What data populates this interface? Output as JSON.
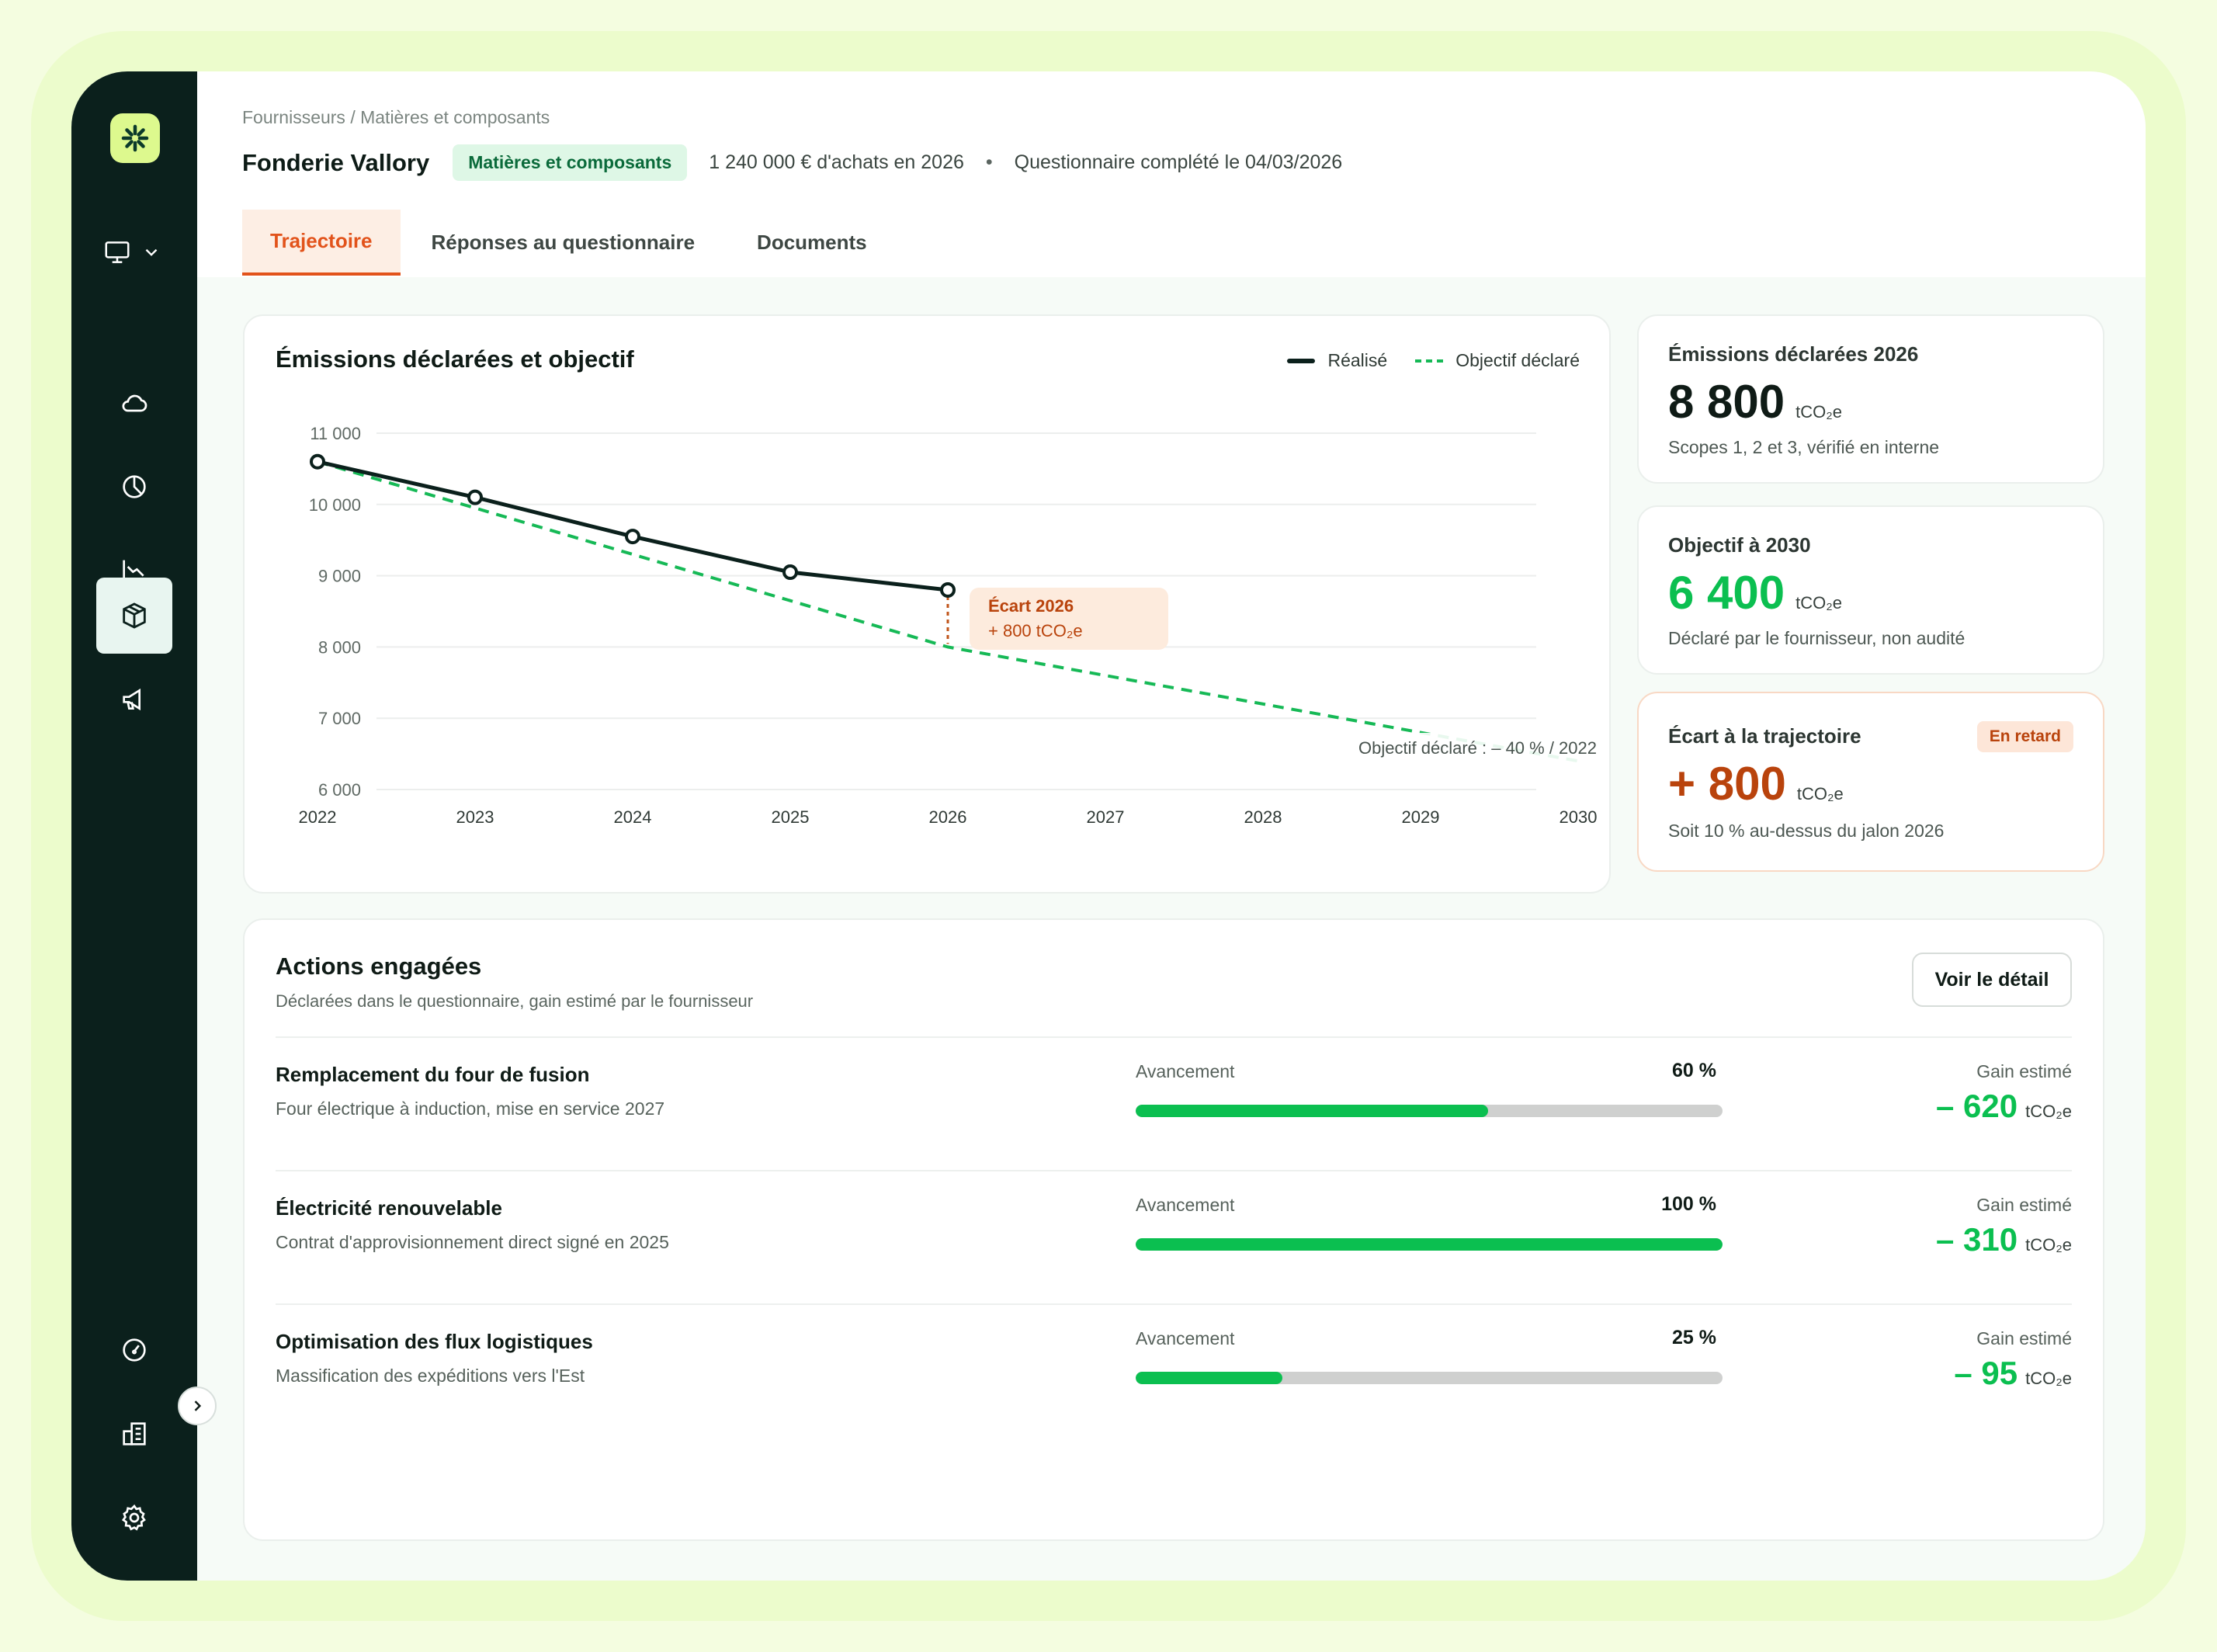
{
  "app": {
    "nav_icons": [
      "monitor-icon",
      "cloud-icon",
      "pie-chart-icon",
      "trend-chart-icon",
      "box-icon",
      "megaphone-icon",
      "gauge-icon",
      "building-icon",
      "gear-icon"
    ],
    "active_nav": "box-icon"
  },
  "header": {
    "breadcrumb": "Fournisseurs / Matières et composants",
    "supplier": "Fonderie Vallory",
    "category_tag": "Matières et composants",
    "purchases": "1 240 000 € d'achats en 2026",
    "separator": "•",
    "questionnaire": "Questionnaire complété le 04/03/2026"
  },
  "tabs": [
    {
      "label": "Trajectoire",
      "active": true
    },
    {
      "label": "Réponses au questionnaire",
      "active": false
    },
    {
      "label": "Documents",
      "active": false
    }
  ],
  "chart": {
    "title": "Émissions déclarées et objectif",
    "legend_realise": "Réalisé",
    "legend_objectif": "Objectif déclaré",
    "gap_title": "Écart 2026",
    "gap_value": "+ 800 tCO₂e",
    "target_note": "Objectif déclaré : – 40 % / 2022"
  },
  "chart_data": {
    "type": "line",
    "title": "Émissions déclarées et objectif",
    "x": [
      2022,
      2023,
      2024,
      2025,
      2026,
      2027,
      2028,
      2029,
      2030
    ],
    "xlim": [
      2022,
      2030
    ],
    "ylim": [
      6000,
      11000
    ],
    "yticks": [
      11000,
      10000,
      9000,
      8000,
      7000,
      6000
    ],
    "ytick_labels": [
      "11 000",
      "10 000",
      "9 000",
      "8 000",
      "7 000",
      "6 000"
    ],
    "series": [
      {
        "name": "Réalisé",
        "style": "solid",
        "color": "#0b201c",
        "x": [
          2022,
          2023,
          2024,
          2025,
          2026
        ],
        "values": [
          10600,
          10100,
          9550,
          9050,
          8800
        ]
      },
      {
        "name": "Objectif déclaré",
        "style": "dashed",
        "color": "#16b956",
        "x": [
          2022,
          2026,
          2030
        ],
        "values": [
          10600,
          8000,
          6400
        ]
      }
    ],
    "annotations": [
      {
        "x": 2026,
        "text": "Écart 2026",
        "value": "+ 800 tCO₂e"
      },
      {
        "x": 2030,
        "text": "Objectif déclaré : – 40 % / 2022"
      }
    ],
    "grid": true,
    "legend": "top-right"
  },
  "stats": [
    {
      "label": "Émissions déclarées 2026",
      "value": "8 800",
      "unit": "tCO₂e",
      "sub": "Scopes 1, 2 et 3, vérifié en interne",
      "color": "#0f1b16"
    },
    {
      "label": "Objectif à 2030",
      "value": "6 400",
      "unit": "tCO₂e",
      "sub": "Déclaré par le fournisseur, non audité",
      "color": "#0bbf50"
    },
    {
      "label": "Écart à la trajectoire",
      "value": "+ 800",
      "unit": "tCO₂e",
      "sub": "Soit 10 % au-dessus du jalon 2026",
      "color": "#b9430c",
      "badge": "En retard"
    }
  ],
  "actions": {
    "title": "Actions engagées",
    "subtitle": "Déclarées dans le questionnaire, gain estimé par le fournisseur",
    "detail_button": "Voir le détail",
    "progress_label": "Avancement",
    "gain_label": "Gain estimé",
    "items": [
      {
        "name": "Remplacement du four de fusion",
        "desc": "Four électrique à induction, mise en service 2027",
        "progress": 0.6,
        "progress_text": "60 %",
        "gain": "– 620",
        "unit": "tCO₂e"
      },
      {
        "name": "Électricité renouvelable",
        "desc": "Contrat d'approvisionnement direct signé en 2025",
        "progress": 1.0,
        "progress_text": "100 %",
        "gain": "– 310",
        "unit": "tCO₂e"
      },
      {
        "name": "Optimisation des flux logistiques",
        "desc": "Massification des expéditions vers l'Est",
        "progress": 0.25,
        "progress_text": "25 %",
        "gain": "– 95",
        "unit": "tCO₂e"
      }
    ]
  }
}
